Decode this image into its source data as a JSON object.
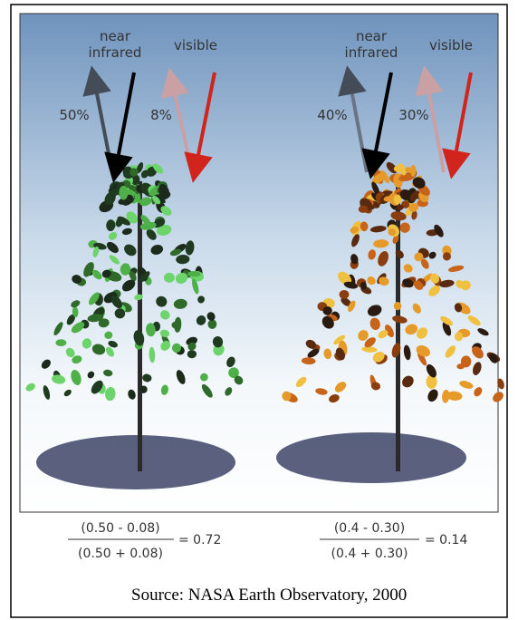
{
  "left_panel": {
    "nir_label": [
      "near",
      "infrared"
    ],
    "visible_label": "visible",
    "nir_percent": "50%",
    "visible_percent": "8%",
    "formula": {
      "numerator": "(0.50 - 0.08)",
      "denominator": "(0.50 + 0.08)",
      "result": "= 0.72"
    }
  },
  "right_panel": {
    "nir_label": [
      "near",
      "infrared"
    ],
    "visible_label": "visible",
    "nir_percent": "40%",
    "visible_percent": "30%",
    "formula": {
      "numerator": "(0.4 - 0.30)",
      "denominator": "(0.4 + 0.30)",
      "result": "= 0.14"
    }
  },
  "source": "Source: NASA Earth Observatory, 2000"
}
